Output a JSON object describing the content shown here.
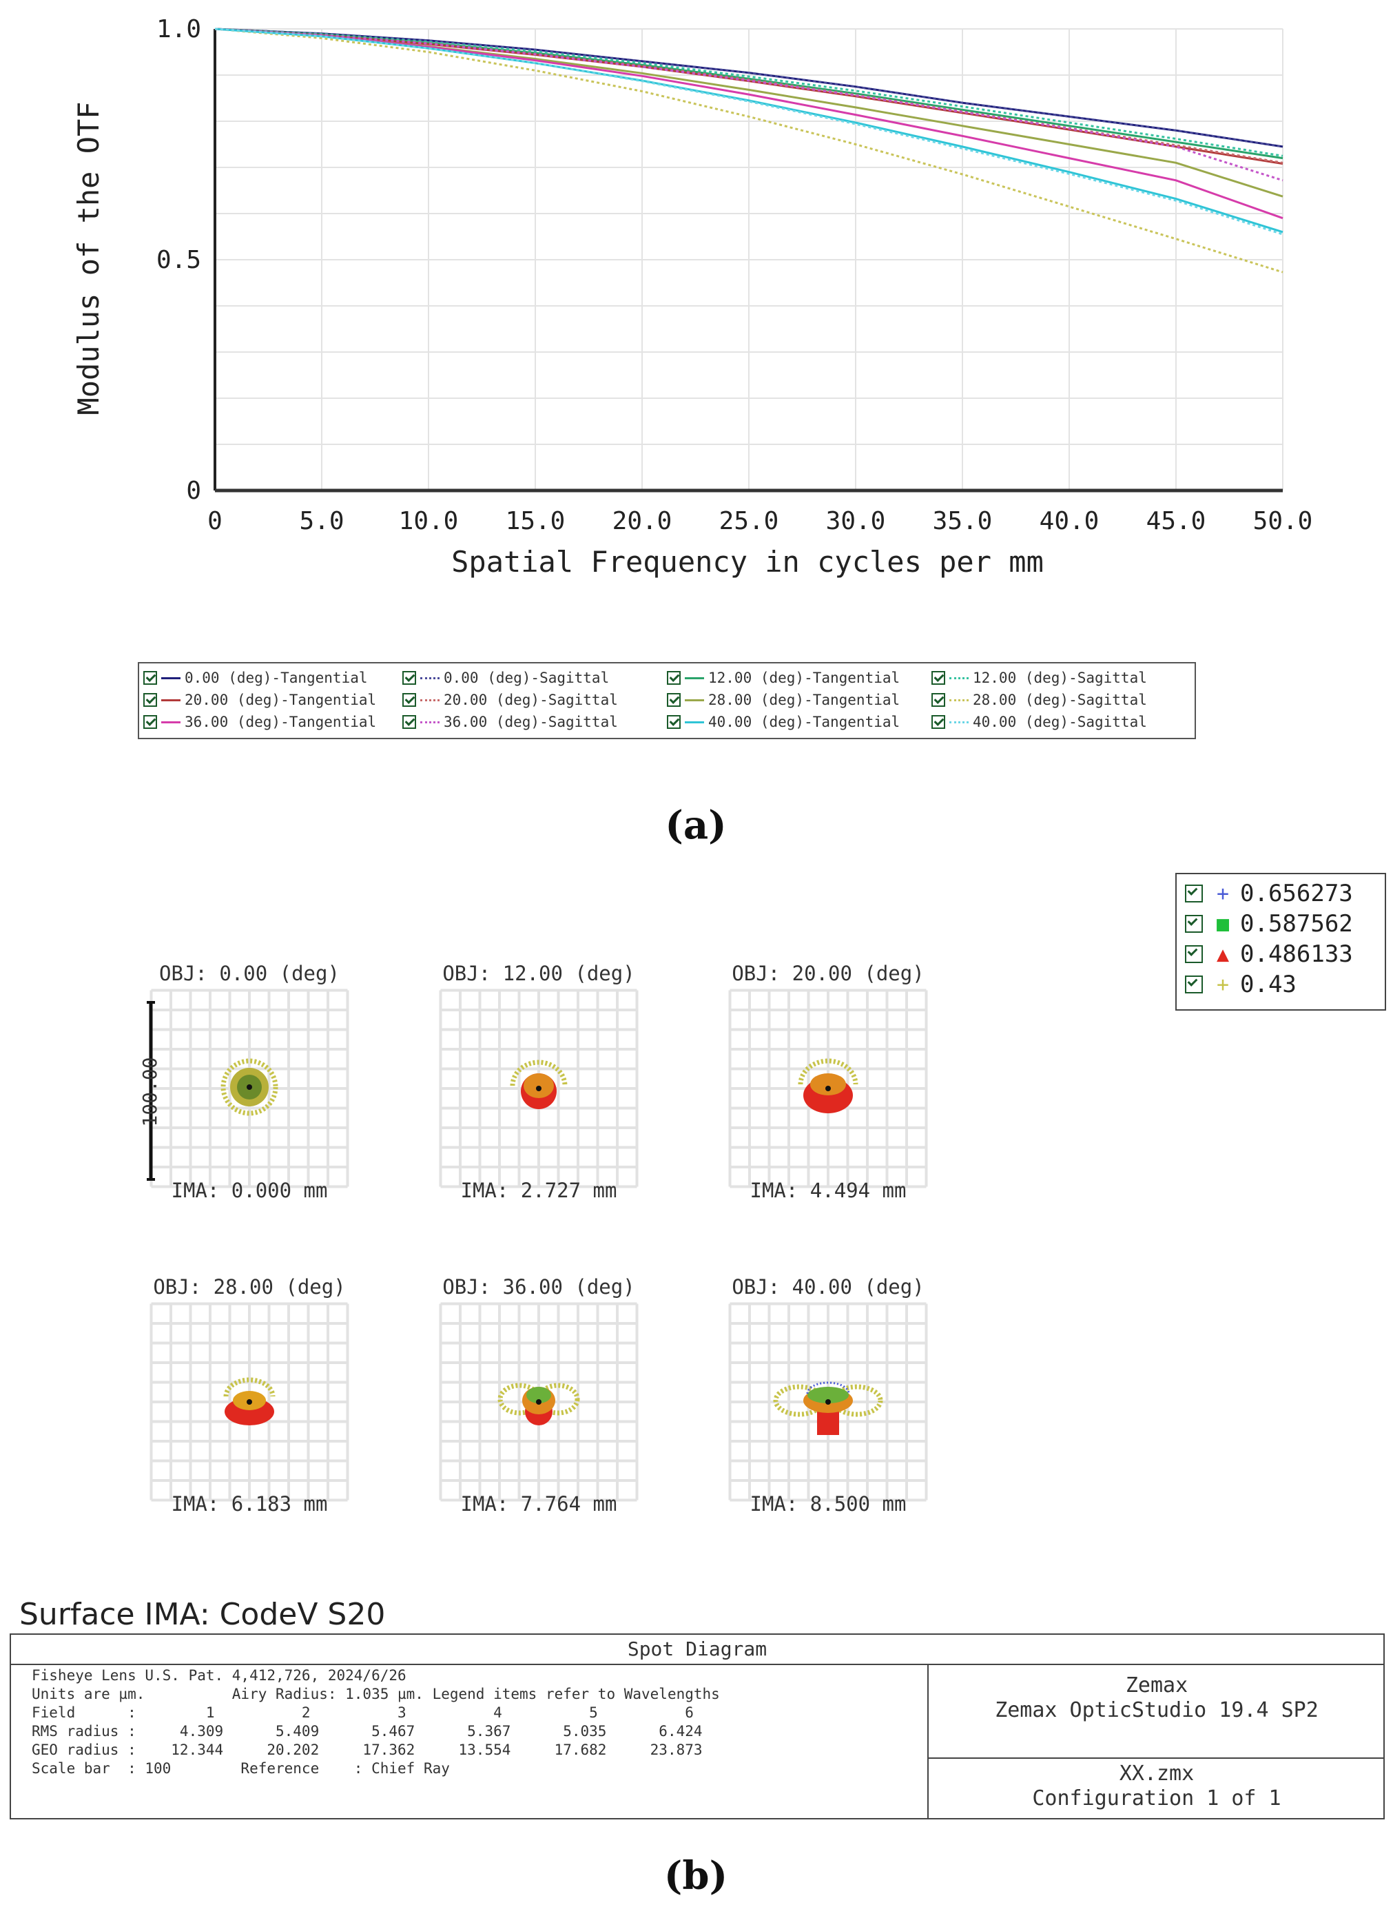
{
  "chart_data": [
    {
      "type": "line",
      "title": "",
      "xlabel": "Spatial Frequency in cycles per mm",
      "ylabel": "Modulus of the OTF",
      "xlim": [
        0,
        50
      ],
      "ylim": [
        0,
        1
      ],
      "xticks": [
        "0",
        "5.0",
        "10.0",
        "15.0",
        "20.0",
        "25.0",
        "30.0",
        "35.0",
        "40.0",
        "45.0",
        "50.0"
      ],
      "yticks": [
        "0",
        "0.5",
        "1.0"
      ],
      "grid": true,
      "legend_position": "bottom",
      "x": [
        0,
        5,
        10,
        15,
        20,
        25,
        30,
        35,
        40,
        45,
        50
      ],
      "series": [
        {
          "name": "0.00 (deg)-Tangential",
          "color": "#1f1f7a",
          "dash": "solid",
          "values": [
            1.0,
            0.99,
            0.975,
            0.955,
            0.93,
            0.905,
            0.875,
            0.84,
            0.81,
            0.78,
            0.745
          ]
        },
        {
          "name": "0.00 (deg)-Sagittal",
          "color": "#4a4a9a",
          "dash": "dotted",
          "values": [
            1.0,
            0.99,
            0.975,
            0.955,
            0.93,
            0.905,
            0.875,
            0.84,
            0.81,
            0.78,
            0.745
          ]
        },
        {
          "name": "12.00 (deg)-Tangential",
          "color": "#2aa36a",
          "dash": "solid",
          "values": [
            1.0,
            0.988,
            0.97,
            0.948,
            0.922,
            0.892,
            0.86,
            0.825,
            0.79,
            0.755,
            0.72
          ]
        },
        {
          "name": "12.00 (deg)-Sagittal",
          "color": "#35c2a0",
          "dash": "dotted",
          "values": [
            1.0,
            0.989,
            0.972,
            0.951,
            0.926,
            0.897,
            0.866,
            0.832,
            0.797,
            0.762,
            0.725
          ]
        },
        {
          "name": "20.00 (deg)-Tangential",
          "color": "#b23a3a",
          "dash": "solid",
          "values": [
            1.0,
            0.986,
            0.967,
            0.944,
            0.918,
            0.887,
            0.854,
            0.818,
            0.782,
            0.745,
            0.708
          ]
        },
        {
          "name": "20.00 (deg)-Sagittal",
          "color": "#c76a6a",
          "dash": "dotted",
          "values": [
            1.0,
            0.987,
            0.969,
            0.946,
            0.92,
            0.89,
            0.857,
            0.821,
            0.785,
            0.748,
            0.71
          ]
        },
        {
          "name": "28.00 (deg)-Tangential",
          "color": "#9aa84a",
          "dash": "solid",
          "values": [
            1.0,
            0.985,
            0.962,
            0.935,
            0.904,
            0.868,
            0.83,
            0.79,
            0.75,
            0.71,
            0.637
          ]
        },
        {
          "name": "28.00 (deg)-Sagittal",
          "color": "#c9c45a",
          "dash": "dotted",
          "values": [
            1.0,
            0.98,
            0.95,
            0.91,
            0.865,
            0.81,
            0.75,
            0.685,
            0.615,
            0.545,
            0.473
          ]
        },
        {
          "name": "36.00 (deg)-Tangential",
          "color": "#d63caa",
          "dash": "solid",
          "values": [
            1.0,
            0.985,
            0.961,
            0.932,
            0.898,
            0.858,
            0.814,
            0.768,
            0.72,
            0.672,
            0.59
          ]
        },
        {
          "name": "36.00 (deg)-Sagittal",
          "color": "#c456c9",
          "dash": "dotted",
          "values": [
            1.0,
            0.987,
            0.968,
            0.945,
            0.918,
            0.888,
            0.856,
            0.82,
            0.784,
            0.745,
            0.672
          ]
        },
        {
          "name": "40.00 (deg)-Tangential",
          "color": "#2fc4d6",
          "dash": "solid",
          "values": [
            1.0,
            0.984,
            0.958,
            0.926,
            0.888,
            0.845,
            0.797,
            0.745,
            0.69,
            0.632,
            0.56
          ]
        },
        {
          "name": "40.00 (deg)-Sagittal",
          "color": "#6ad6e6",
          "dash": "dotted",
          "values": [
            1.0,
            0.984,
            0.958,
            0.926,
            0.887,
            0.843,
            0.794,
            0.741,
            0.686,
            0.628,
            0.555
          ]
        }
      ]
    },
    {
      "type": "scatter",
      "title": "Spot Diagram",
      "wavelength_legend": [
        {
          "value": "0.656273",
          "marker": "+",
          "color": "#4a5bd6"
        },
        {
          "value": "0.587562",
          "marker": "■",
          "color": "#1fbf3a"
        },
        {
          "value": "0.486133",
          "marker": "▲",
          "color": "#e0281f"
        },
        {
          "value": "0.43",
          "marker": "+",
          "color": "#c7c34a"
        }
      ],
      "panels": [
        {
          "obj": "OBJ: 0.00 (deg)",
          "ima": "IMA: 0.000 mm"
        },
        {
          "obj": "OBJ: 12.00 (deg)",
          "ima": "IMA: 2.727 mm"
        },
        {
          "obj": "OBJ: 20.00 (deg)",
          "ima": "IMA: 4.494 mm"
        },
        {
          "obj": "OBJ: 28.00 (deg)",
          "ima": "IMA: 6.183 mm"
        },
        {
          "obj": "OBJ: 36.00 (deg)",
          "ima": "IMA: 7.764 mm"
        },
        {
          "obj": "OBJ: 40.00 (deg)",
          "ima": "IMA: 8.500 mm"
        }
      ],
      "scale_bar_label": "100.00"
    }
  ],
  "captions": {
    "a": "(a)",
    "b": "(b)"
  },
  "report": {
    "surface_title": "Surface IMA: CodeV S20",
    "title": "Spot Diagram",
    "line1": "Fisheye Lens U.S. Pat. 4,412,726, 2024/6/26",
    "line2": "Units are µm.          Airy Radius: 1.035 µm. Legend items refer to Wavelengths",
    "line3": "Field      :        1          2          3          4          5          6",
    "line4": "RMS radius :     4.309      5.409      5.467      5.367      5.035      6.424",
    "line5": "GEO radius :    12.344     20.202     17.362     13.554     17.682     23.873",
    "line6": "Scale bar  : 100        Reference    : Chief Ray",
    "right_top_1": "Zemax",
    "right_top_2": "Zemax OpticStudio 19.4 SP2",
    "right_bot_1": "XX.zmx",
    "right_bot_2": "Configuration 1 of 1"
  }
}
